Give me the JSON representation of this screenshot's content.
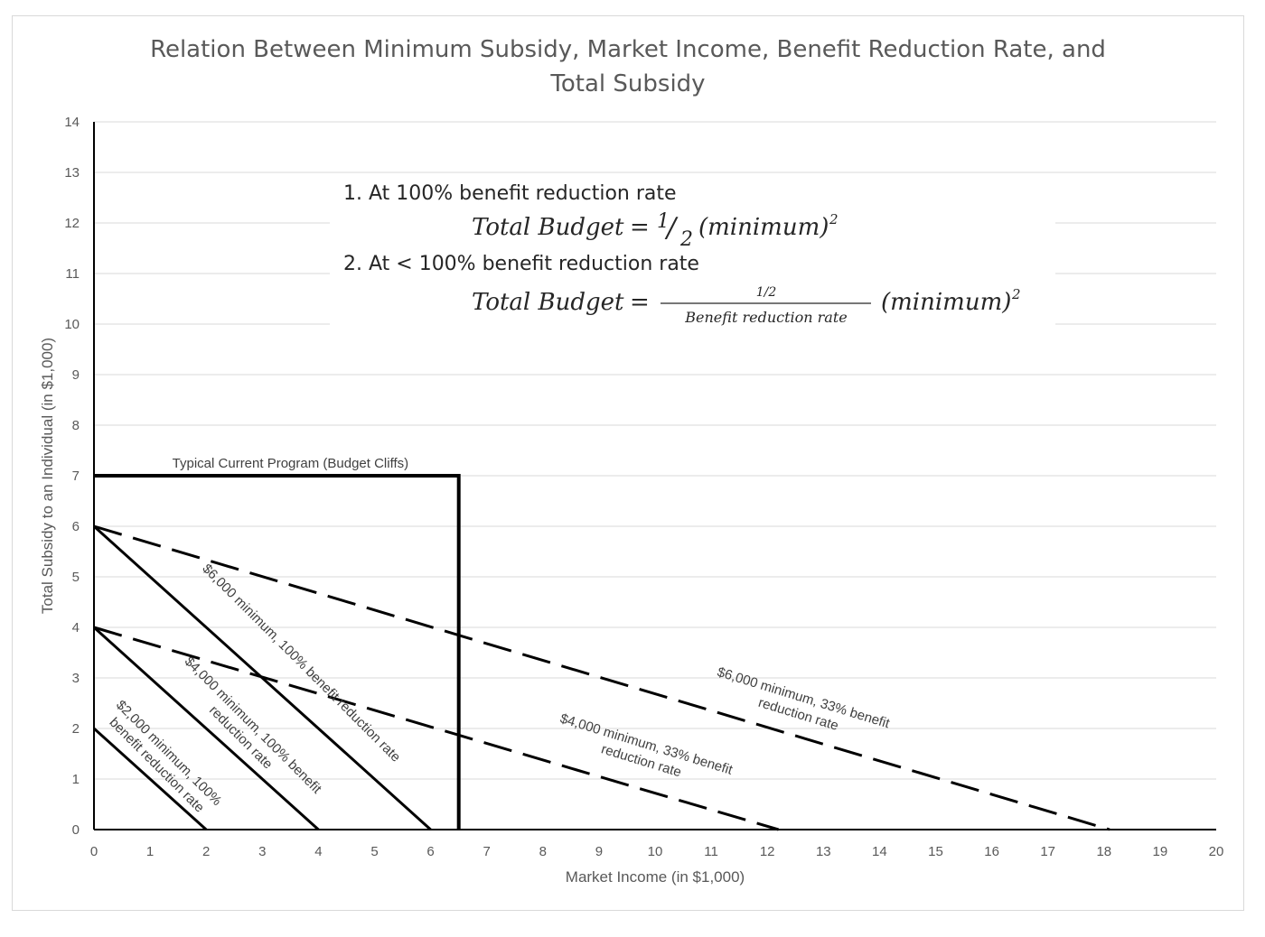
{
  "chart_data": {
    "type": "line",
    "title_lines": [
      "Relation Between Minimum Subsidy, Market Income, Benefit Reduction Rate, and",
      "Total Subsidy"
    ],
    "xlabel": "Market Income (in $1,000)",
    "ylabel": "Total Subsidy to an Individual (in $1,000)",
    "xlim": [
      0,
      20
    ],
    "ylim": [
      0,
      14
    ],
    "x_ticks": [
      "0",
      "1",
      "2",
      "3",
      "4",
      "5",
      "6",
      "7",
      "8",
      "9",
      "10",
      "11",
      "12",
      "13",
      "14",
      "15",
      "16",
      "17",
      "18",
      "19",
      "20"
    ],
    "y_ticks": [
      "0",
      "1",
      "2",
      "3",
      "4",
      "5",
      "6",
      "7",
      "8",
      "9",
      "10",
      "11",
      "12",
      "13",
      "14"
    ],
    "grid": "horizontal",
    "series": [
      {
        "name": "Typical Current Program (Budget Cliffs)",
        "style": "solid-thick",
        "points": [
          [
            0,
            7
          ],
          [
            6.5,
            7
          ],
          [
            6.5,
            0
          ]
        ],
        "label_lines": [
          "Typical Current Program (Budget Cliffs)"
        ],
        "label_at": [
          3.5,
          7.25
        ],
        "label_angle_deg": 0
      },
      {
        "name": "$2,000 minimum, 100% benefit reduction rate",
        "style": "solid",
        "points": [
          [
            0,
            2
          ],
          [
            2,
            0
          ]
        ],
        "label_lines": [
          "$2,000 minimum, 100%",
          "benefit reduction rate"
        ],
        "label_at": [
          1.23,
          1.4
        ],
        "label_angle_deg": 45
      },
      {
        "name": "$4,000 minimum, 100% benefit reduction rate",
        "style": "solid",
        "points": [
          [
            0,
            4
          ],
          [
            4,
            0
          ]
        ],
        "label_lines": [
          "$4,000 minimum, 100% benefit",
          "reduction rate"
        ],
        "label_at": [
          2.73,
          1.95
        ],
        "label_angle_deg": 45
      },
      {
        "name": "$6,000 minimum, 100% benefit reduction rate",
        "style": "solid",
        "points": [
          [
            0,
            6
          ],
          [
            6,
            0
          ]
        ],
        "label_lines": [
          "$6,000 minimum, 100% benefit reduction rate"
        ],
        "label_at": [
          3.7,
          3.3
        ],
        "label_angle_deg": 45
      },
      {
        "name": "$4,000 minimum, 33% benefit reduction rate",
        "style": "dashed",
        "points": [
          [
            0,
            4
          ],
          [
            12.2,
            0
          ]
        ],
        "label_lines": [
          "$4,000 minimum, 33% benefit",
          "reduction rate"
        ],
        "label_at": [
          9.8,
          1.53
        ],
        "label_angle_deg": 17
      },
      {
        "name": "$6,000 minimum, 33% benefit reduction rate",
        "style": "dashed",
        "points": [
          [
            0,
            6
          ],
          [
            18.1,
            0
          ]
        ],
        "label_lines": [
          "$6,000 minimum, 33% benefit",
          "reduction rate"
        ],
        "label_at": [
          12.6,
          2.45
        ],
        "label_angle_deg": 17
      }
    ],
    "annotation": {
      "line1": "1. At 100% benefit reduction rate",
      "formula1_lhs": "Total Budget",
      "formula1_equals": "=",
      "formula1_num": "1",
      "formula1_slash": "/",
      "formula1_den": "2",
      "formula1_rhs": "(minimum)",
      "formula1_exp": "2",
      "line2": "2. At < 100% benefit reduction rate",
      "formula2_lhs": "Total Budget",
      "formula2_equals": "=",
      "formula2_num": "1/2",
      "formula2_den": "Benefit reduction rate",
      "formula2_rhs": "(minimum)",
      "formula2_exp": "2"
    }
  }
}
